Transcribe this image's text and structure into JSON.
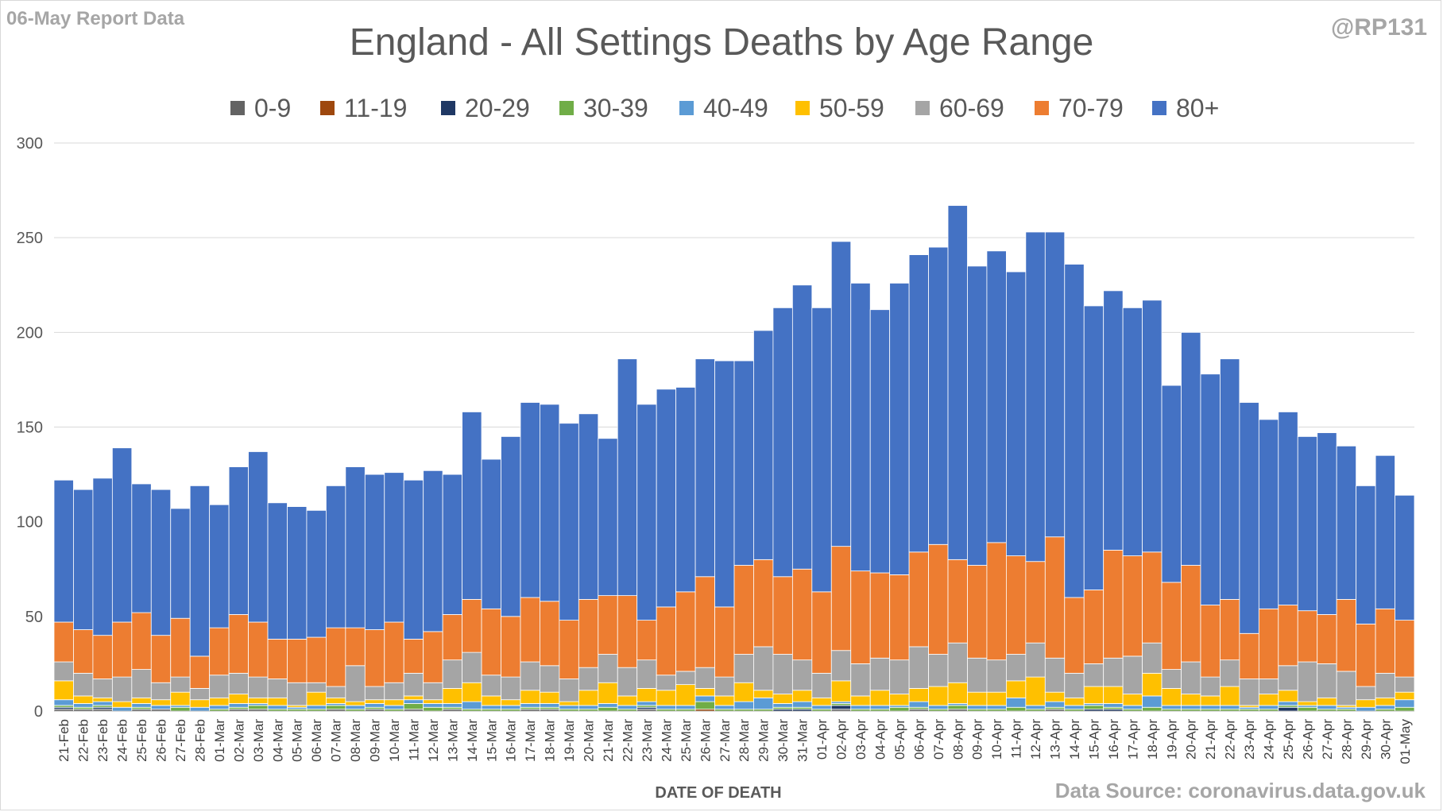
{
  "header": {
    "report_note": "06-May Report Data",
    "handle": "@RP131",
    "source": "Data Source: coronavirus.data.gov.uk"
  },
  "chart_data": {
    "type": "bar",
    "stacked": true,
    "title": "England - All Settings Deaths by Age Range",
    "xlabel": "DATE OF DEATH",
    "ylabel": "",
    "ylim": [
      0,
      300
    ],
    "yticks": [
      0,
      50,
      100,
      150,
      200,
      250,
      300
    ],
    "grid": true,
    "legend_position": "top",
    "categories": [
      "21-Feb",
      "22-Feb",
      "23-Feb",
      "24-Feb",
      "25-Feb",
      "26-Feb",
      "27-Feb",
      "28-Feb",
      "01-Mar",
      "02-Mar",
      "03-Mar",
      "04-Mar",
      "05-Mar",
      "06-Mar",
      "07-Mar",
      "08-Mar",
      "09-Mar",
      "10-Mar",
      "11-Mar",
      "12-Mar",
      "13-Mar",
      "14-Mar",
      "15-Mar",
      "16-Mar",
      "17-Mar",
      "18-Mar",
      "19-Mar",
      "20-Mar",
      "21-Mar",
      "22-Mar",
      "23-Mar",
      "24-Mar",
      "25-Mar",
      "26-Mar",
      "27-Mar",
      "28-Mar",
      "29-Mar",
      "30-Mar",
      "31-Mar",
      "01-Apr",
      "02-Apr",
      "03-Apr",
      "04-Apr",
      "05-Apr",
      "06-Apr",
      "07-Apr",
      "08-Apr",
      "09-Apr",
      "10-Apr",
      "11-Apr",
      "12-Apr",
      "13-Apr",
      "14-Apr",
      "15-Apr",
      "16-Apr",
      "17-Apr",
      "18-Apr",
      "19-Apr",
      "20-Apr",
      "21-Apr",
      "22-Apr",
      "23-Apr",
      "24-Apr",
      "25-Apr",
      "26-Apr",
      "27-Apr",
      "28-Apr",
      "29-Apr",
      "30-Apr",
      "01-May"
    ],
    "series": [
      {
        "name": "0-9",
        "color": "#636363",
        "values": [
          1,
          1,
          1,
          0,
          1,
          1,
          0,
          0,
          0,
          1,
          1,
          0,
          0,
          0,
          1,
          0,
          1,
          0,
          1,
          0,
          1,
          0,
          0,
          0,
          1,
          1,
          0,
          0,
          0,
          0,
          1,
          0,
          0,
          0,
          0,
          0,
          0,
          0,
          0,
          0,
          1,
          0,
          0,
          0,
          1,
          0,
          1,
          0,
          0,
          0,
          0,
          1,
          0,
          0,
          0,
          0,
          0,
          0,
          0,
          0,
          0,
          0,
          0,
          0,
          0,
          0,
          0,
          0,
          0,
          0
        ]
      },
      {
        "name": "11-19",
        "color": "#9e480e",
        "values": [
          0,
          0,
          0,
          0,
          0,
          0,
          0,
          0,
          0,
          0,
          0,
          0,
          0,
          0,
          0,
          0,
          0,
          0,
          0,
          0,
          0,
          0,
          0,
          0,
          0,
          0,
          0,
          0,
          0,
          0,
          0,
          0,
          0,
          1,
          0,
          0,
          0,
          0,
          0,
          0,
          0,
          0,
          0,
          0,
          0,
          0,
          0,
          0,
          0,
          0,
          0,
          0,
          0,
          0,
          0,
          0,
          0,
          0,
          0,
          0,
          0,
          0,
          0,
          0,
          0,
          0,
          0,
          0,
          0,
          0
        ]
      },
      {
        "name": "20-29",
        "color": "#1f3864",
        "values": [
          1,
          0,
          1,
          0,
          0,
          0,
          0,
          0,
          0,
          0,
          0,
          0,
          0,
          0,
          0,
          0,
          0,
          0,
          0,
          0,
          0,
          0,
          0,
          0,
          0,
          0,
          0,
          0,
          0,
          0,
          1,
          0,
          0,
          0,
          0,
          0,
          0,
          1,
          1,
          0,
          2,
          0,
          0,
          0,
          0,
          0,
          0,
          0,
          0,
          0,
          0,
          0,
          0,
          1,
          1,
          0,
          0,
          0,
          0,
          0,
          0,
          0,
          0,
          2,
          0,
          0,
          0,
          0,
          0,
          0
        ]
      },
      {
        "name": "30-39",
        "color": "#70ad47",
        "values": [
          1,
          1,
          1,
          0,
          1,
          0,
          2,
          0,
          1,
          1,
          2,
          1,
          1,
          1,
          2,
          1,
          1,
          1,
          3,
          2,
          1,
          1,
          1,
          1,
          1,
          1,
          1,
          1,
          2,
          1,
          1,
          1,
          1,
          4,
          1,
          1,
          1,
          1,
          1,
          1,
          1,
          1,
          1,
          2,
          1,
          1,
          2,
          1,
          1,
          2,
          1,
          1,
          1,
          2,
          1,
          1,
          2,
          1,
          1,
          1,
          1,
          1,
          1,
          1,
          2,
          1,
          1,
          0,
          1,
          2
        ]
      },
      {
        "name": "40-49",
        "color": "#5b9bd5",
        "values": [
          3,
          2,
          2,
          2,
          2,
          2,
          1,
          2,
          2,
          2,
          1,
          2,
          1,
          2,
          1,
          2,
          2,
          2,
          2,
          2,
          2,
          4,
          2,
          2,
          2,
          2,
          2,
          2,
          2,
          2,
          2,
          2,
          2,
          3,
          2,
          4,
          6,
          2,
          3,
          2,
          1,
          2,
          2,
          1,
          3,
          2,
          1,
          2,
          2,
          5,
          2,
          3,
          2,
          1,
          2,
          2,
          6,
          2,
          2,
          2,
          2,
          1,
          2,
          2,
          1,
          2,
          1,
          2,
          2,
          4
        ]
      },
      {
        "name": "50-59",
        "color": "#ffc000",
        "values": [
          10,
          4,
          2,
          3,
          3,
          3,
          7,
          4,
          4,
          5,
          3,
          4,
          1,
          7,
          3,
          2,
          2,
          3,
          2,
          2,
          8,
          10,
          5,
          3,
          7,
          6,
          2,
          8,
          11,
          5,
          7,
          8,
          11,
          4,
          5,
          10,
          4,
          5,
          6,
          4,
          11,
          5,
          8,
          6,
          7,
          10,
          11,
          7,
          7,
          9,
          15,
          5,
          4,
          9,
          9,
          6,
          12,
          9,
          6,
          5,
          10,
          1,
          6,
          6,
          2,
          4,
          1,
          4,
          4,
          4
        ]
      },
      {
        "name": "60-69",
        "color": "#a5a5a5",
        "values": [
          10,
          12,
          10,
          13,
          15,
          9,
          8,
          6,
          12,
          11,
          11,
          10,
          12,
          5,
          6,
          19,
          7,
          9,
          12,
          9,
          15,
          16,
          11,
          12,
          15,
          14,
          12,
          12,
          15,
          15,
          15,
          8,
          7,
          11,
          10,
          15,
          23,
          21,
          16,
          13,
          16,
          17,
          17,
          18,
          22,
          17,
          21,
          18,
          17,
          14,
          18,
          18,
          13,
          12,
          15,
          20,
          16,
          10,
          17,
          10,
          14,
          14,
          8,
          13,
          21,
          18,
          18,
          7,
          13,
          8
        ]
      },
      {
        "name": "70-79",
        "color": "#ed7d31",
        "values": [
          21,
          23,
          23,
          29,
          30,
          25,
          31,
          17,
          25,
          31,
          29,
          21,
          23,
          24,
          31,
          20,
          30,
          32,
          18,
          27,
          24,
          28,
          35,
          32,
          34,
          34,
          31,
          36,
          31,
          38,
          21,
          36,
          42,
          48,
          37,
          47,
          46,
          41,
          48,
          43,
          55,
          49,
          45,
          45,
          50,
          58,
          44,
          49,
          62,
          52,
          43,
          64,
          40,
          39,
          57,
          53,
          48,
          46,
          51,
          38,
          32,
          24,
          37,
          32,
          27,
          26,
          38,
          33,
          34,
          30
        ]
      },
      {
        "name": "80+",
        "color": "#4472c4",
        "values": [
          75,
          74,
          83,
          92,
          68,
          77,
          58,
          90,
          65,
          78,
          90,
          72,
          70,
          67,
          75,
          85,
          82,
          79,
          84,
          85,
          74,
          99,
          79,
          95,
          103,
          104,
          104,
          98,
          83,
          125,
          114,
          115,
          108,
          115,
          130,
          108,
          121,
          142,
          150,
          150,
          161,
          152,
          139,
          154,
          157,
          157,
          187,
          158,
          154,
          150,
          174,
          161,
          176,
          150,
          137,
          131,
          133,
          104,
          123,
          122,
          127,
          122,
          100,
          102,
          92,
          96,
          81,
          73,
          81,
          66
        ]
      }
    ]
  }
}
